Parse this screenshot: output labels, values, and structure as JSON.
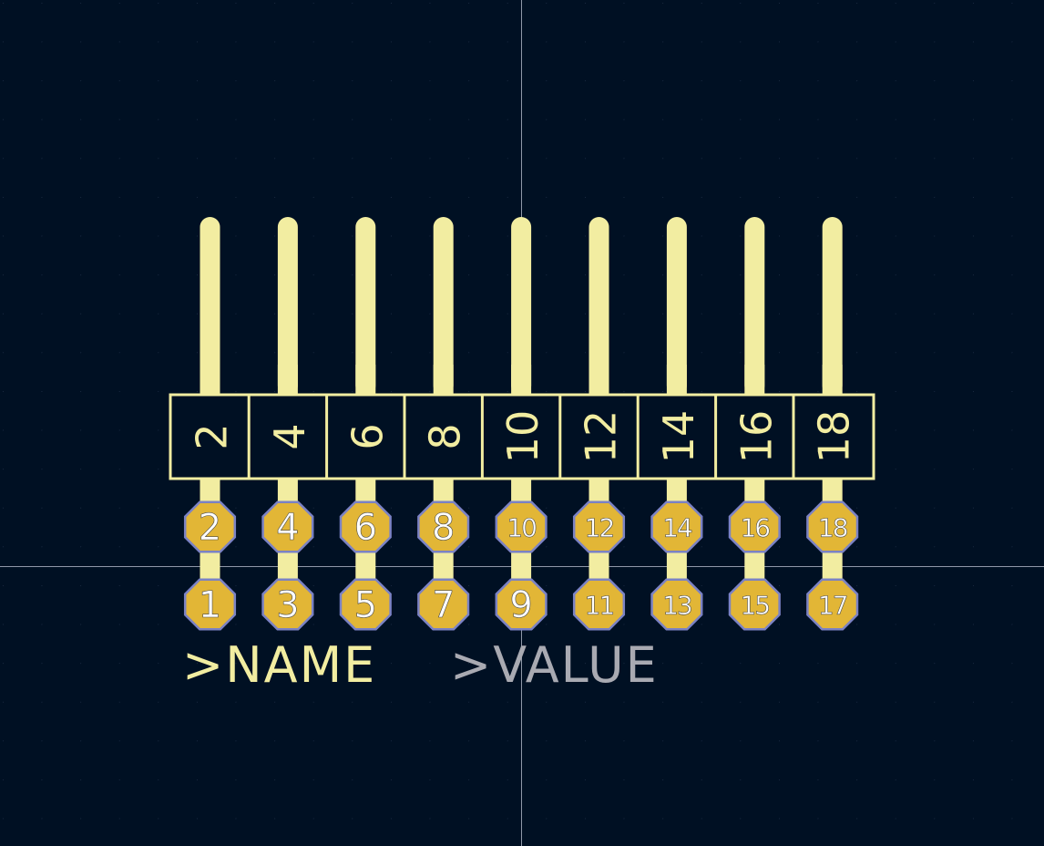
{
  "footprint": {
    "top_row_pins": [
      "2",
      "4",
      "6",
      "8",
      "10",
      "12",
      "14",
      "16",
      "18"
    ],
    "bottom_row_pins": [
      "1",
      "3",
      "5",
      "7",
      "9",
      "11",
      "13",
      "15",
      "17"
    ],
    "body_labels": [
      "2",
      "4",
      "6",
      "8",
      "10",
      "12",
      "14",
      "16",
      "18"
    ],
    "name_label": ">NAME",
    "value_label": ">VALUE"
  },
  "colors": {
    "background": "#001023",
    "silkscreen": "#f2eda1",
    "pad_copper": "#e2b636",
    "pad_outline": "#7b82c4",
    "pad_number": "#ffffff",
    "value_text": "#a9aab2",
    "crosshair": "#8f98a8",
    "grid_dot": "#2a3a55"
  },
  "icons": {
    "pad_shape": "octagon-pad",
    "pin_shape": "rounded-pin"
  }
}
